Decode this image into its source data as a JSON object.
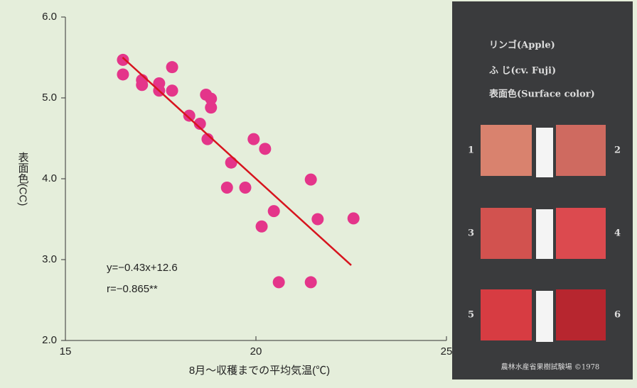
{
  "chart_data": {
    "type": "scatter",
    "xlabel": "8月〜収穫までの平均気温(℃)",
    "ylabel": "表面色(CC)",
    "annotations": [
      "y=−0.43x+12.6",
      "r=−0.865**"
    ],
    "x": [
      16.51,
      16.51,
      17.01,
      17.01,
      17.46,
      17.46,
      17.8,
      17.8,
      18.25,
      18.53,
      18.69,
      18.82,
      18.82,
      18.73,
      19.35,
      19.24,
      19.72,
      19.94,
      20.24,
      20.47,
      20.15,
      21.44,
      21.62,
      22.56,
      20.6,
      21.44
    ],
    "values": [
      5.47,
      5.29,
      5.22,
      5.16,
      5.18,
      5.09,
      5.38,
      5.09,
      4.78,
      4.68,
      5.04,
      4.99,
      4.88,
      4.49,
      4.2,
      3.89,
      3.89,
      4.49,
      4.37,
      3.6,
      3.41,
      3.99,
      3.5,
      3.51,
      2.72,
      2.72
    ],
    "color": "#e4358a",
    "fit": {
      "x": [
        16.5,
        22.5
      ],
      "values": [
        5.5,
        2.93
      ],
      "color": "#d7141e"
    },
    "xlim": [
      15,
      25
    ],
    "xticks": [
      15,
      20,
      25
    ],
    "ylim": [
      2,
      6
    ],
    "yticks": [
      {
        "value": 2,
        "label": "2.0"
      },
      {
        "value": 3,
        "label": "3.0"
      },
      {
        "value": 4,
        "label": "4.0"
      },
      {
        "value": 5,
        "label": "5.0"
      },
      {
        "value": 6,
        "label": "6.0"
      }
    ]
  },
  "photo": {
    "lines": [
      "リンゴ(Apple)",
      "ふ じ(cv. Fuji)",
      "表面色(Surface color)"
    ],
    "numbers": [
      "1",
      "2",
      "3",
      "4",
      "5",
      "6"
    ],
    "footer": "農林水産省果樹試験場 ©1978"
  }
}
